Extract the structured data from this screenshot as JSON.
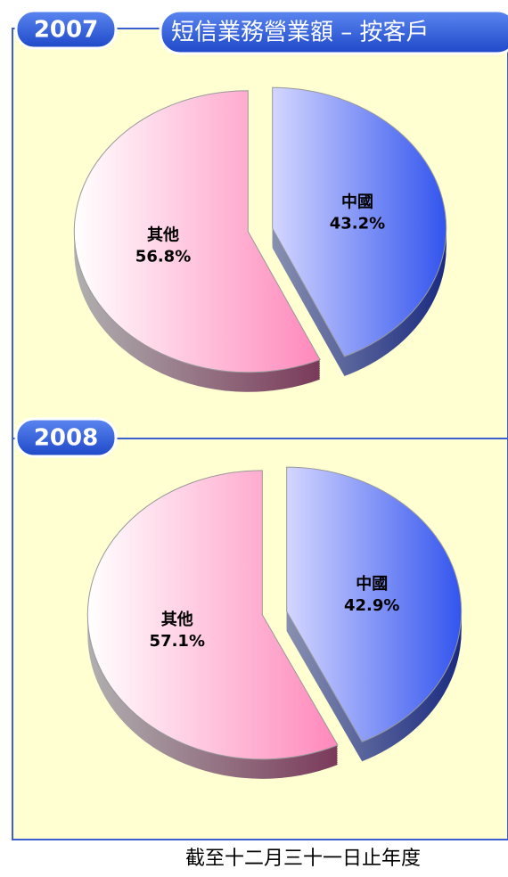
{
  "title": "短信業務營業額 – 按客戶",
  "footnote": "截至十二月三十一日止年度",
  "chart_data": [
    {
      "type": "pie",
      "title": "2007",
      "categories": [
        "中國",
        "其他"
      ],
      "values": [
        43.2,
        56.8
      ],
      "value_labels": [
        "43.2%",
        "56.8%"
      ],
      "colors": [
        "#3355ee",
        "#ff88bb"
      ]
    },
    {
      "type": "pie",
      "title": "2008",
      "categories": [
        "中國",
        "其他"
      ],
      "values": [
        42.9,
        57.1
      ],
      "value_labels": [
        "42.9%",
        "57.1%"
      ],
      "colors": [
        "#3355ee",
        "#ff88bb"
      ]
    }
  ]
}
